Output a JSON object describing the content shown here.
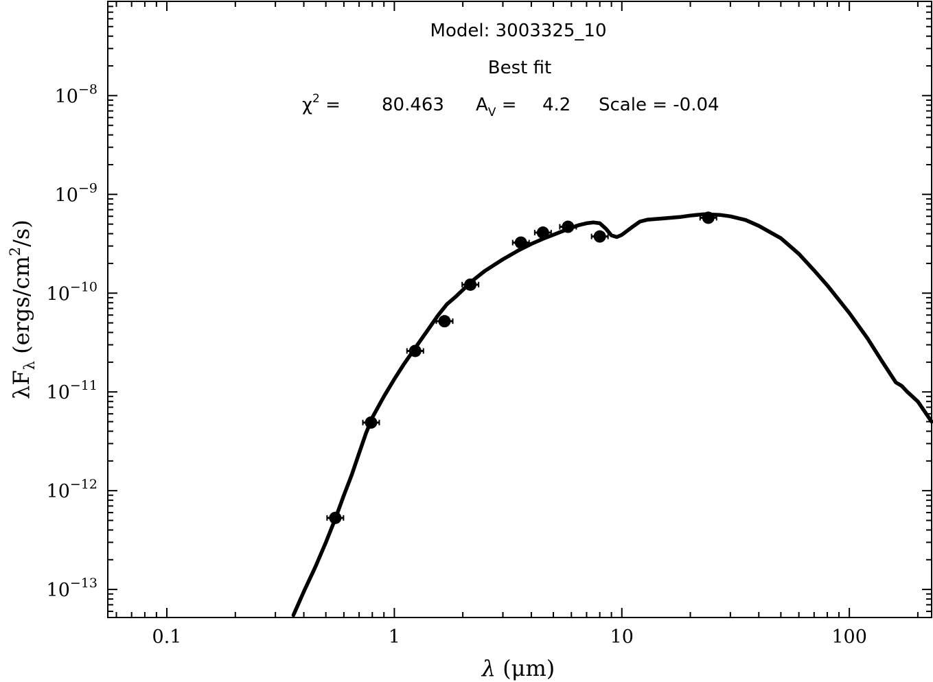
{
  "chart_data": {
    "type": "line",
    "title_lines": [
      "Model: 3003325_10",
      "Best fit"
    ],
    "stats": {
      "chi2_symbol": "χ",
      "chi2_sup": "2",
      "chi2_eq": " = ",
      "chi2_value": "80.463",
      "av_label": "A",
      "av_sub": "V",
      "av_eq": " = ",
      "av_value": "4.2",
      "scale_text": "Scale = -0.04"
    },
    "xlabel": {
      "symbol": "λ",
      "rest": " (μm)"
    },
    "ylabel": {
      "pre": "λF",
      "sub": "λ",
      "mid": " (ergs/cm",
      "sup": "2",
      "post": "/s)"
    },
    "xscale": "log",
    "yscale": "log",
    "xlim": [
      0.055,
      230
    ],
    "ylim": [
      5.2e-14,
      9e-08
    ],
    "xticks": [
      {
        "value": 0.1,
        "label": "0.1"
      },
      {
        "value": 1,
        "label": "1"
      },
      {
        "value": 10,
        "label": "10"
      },
      {
        "value": 100,
        "label": "100"
      }
    ],
    "yticks": [
      {
        "value": 1e-13,
        "base": "10",
        "exp": "−13"
      },
      {
        "value": 1e-12,
        "base": "10",
        "exp": "−12"
      },
      {
        "value": 1e-11,
        "base": "10",
        "exp": "−11"
      },
      {
        "value": 1e-10,
        "base": "10",
        "exp": "−10"
      },
      {
        "value": 1e-09,
        "base": "10",
        "exp": "−9"
      },
      {
        "value": 1e-08,
        "base": "10",
        "exp": "−8"
      }
    ],
    "series": [
      {
        "style": "line",
        "x": [
          0.36,
          0.4,
          0.45,
          0.5,
          0.55,
          0.6,
          0.65,
          0.7,
          0.75,
          0.8,
          0.9,
          1.0,
          1.1,
          1.25,
          1.4,
          1.55,
          1.7,
          1.85,
          2.0,
          2.2,
          2.5,
          3.0,
          3.5,
          4.0,
          4.5,
          5.0,
          5.5,
          6.0,
          6.5,
          7.0,
          7.5,
          8.0,
          8.5,
          9.0,
          9.5,
          10.0,
          11.0,
          12.0,
          13.0,
          15.0,
          18.0,
          20.0,
          23.0,
          27.0,
          30.0,
          35.0,
          40.0,
          50.0,
          60.0,
          70.0,
          80.0,
          100.0,
          120.0,
          140.0,
          160.0,
          170.0,
          180.0,
          200.0,
          230.0
        ],
        "y": [
          5.5e-14,
          9.5e-14,
          1.7e-13,
          3e-13,
          5.2e-13,
          9e-13,
          1.45e-12,
          2.4e-12,
          3.8e-12,
          5.5e-12,
          9e-12,
          1.35e-11,
          1.9e-11,
          2.9e-11,
          4.2e-11,
          5.9e-11,
          7.7e-11,
          9.1e-11,
          1.08e-10,
          1.33e-10,
          1.68e-10,
          2.2e-10,
          2.7e-10,
          3.15e-10,
          3.55e-10,
          3.9e-10,
          4.25e-10,
          4.6e-10,
          4.9e-10,
          5.1e-10,
          5.2e-10,
          5.1e-10,
          4.5e-10,
          3.85e-10,
          3.7e-10,
          3.9e-10,
          4.6e-10,
          5.3e-10,
          5.55e-10,
          5.7e-10,
          5.9e-10,
          6.1e-10,
          6.3e-10,
          6.2e-10,
          6e-10,
          5.5e-10,
          4.8e-10,
          3.6e-10,
          2.5e-10,
          1.7e-10,
          1.2e-10,
          6.3e-11,
          3.5e-11,
          2e-11,
          1.25e-11,
          1.15e-11,
          1e-11,
          8e-12,
          5e-12
        ]
      },
      {
        "style": "scatter",
        "x": [
          0.55,
          0.79,
          1.235,
          1.662,
          2.159,
          3.6,
          4.5,
          5.8,
          8.0,
          24.0
        ],
        "y": [
          5.3e-13,
          4.9e-12,
          2.6e-11,
          5.2e-11,
          1.22e-10,
          3.25e-10,
          4.1e-10,
          4.7e-10,
          3.75e-10,
          5.8e-10
        ]
      }
    ]
  }
}
